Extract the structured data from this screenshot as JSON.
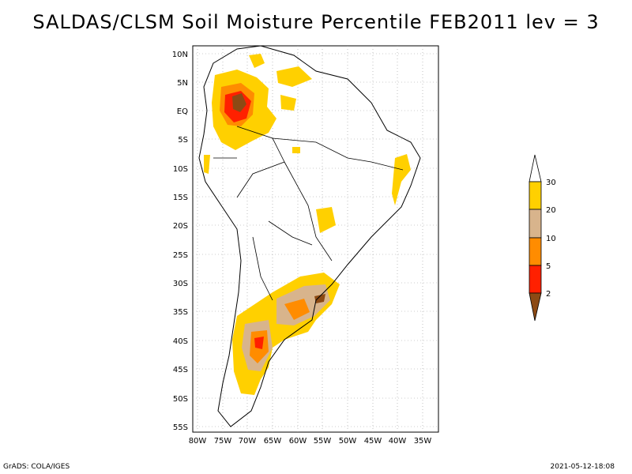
{
  "title": "SALDAS/CLSM Soil Moisture Percentile FEB2011 lev = 3",
  "axes": {
    "lat_labels": [
      "10N",
      "5N",
      "EQ",
      "5S",
      "10S",
      "15S",
      "20S",
      "25S",
      "30S",
      "35S",
      "40S",
      "45S",
      "50S",
      "55S"
    ],
    "lon_labels": [
      "80W",
      "75W",
      "70W",
      "65W",
      "60W",
      "55W",
      "50W",
      "45W",
      "40W",
      "35W"
    ],
    "lat_range": [
      -56,
      12
    ],
    "lon_range": [
      -81,
      -34
    ]
  },
  "legend": {
    "labels": [
      "30",
      "20",
      "10",
      "5",
      "2"
    ],
    "colors": {
      "above30": "#ffffff",
      "c20_30": "#ffd000",
      "c10_20": "#d8b48c",
      "c5_10": "#ff8c00",
      "c2_5": "#ff2000",
      "below2": "#8c4a14"
    }
  },
  "footer": {
    "left": "GrADS: COLA/IGES",
    "right": "2021-05-12-18:08"
  }
}
